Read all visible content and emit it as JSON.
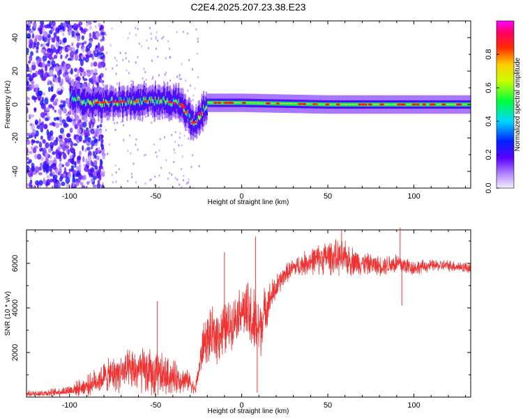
{
  "title": "C2E4.2025.207.23.38.E23",
  "chart_data": [
    {
      "type": "heatmap",
      "xlabel": "Height of straight line (km)",
      "ylabel": "Frequency (Hz)",
      "xlim": [
        -125,
        133
      ],
      "ylim": [
        -50,
        50
      ],
      "xticks": [
        -100,
        -50,
        0,
        50,
        100
      ],
      "yticks": [
        -40,
        -20,
        0,
        20,
        40
      ],
      "colorbar": {
        "label": "Normalized spectral amplitude",
        "range": [
          0.0,
          1.0
        ],
        "ticks": [
          0.0,
          0.2,
          0.4,
          0.6,
          0.8
        ]
      },
      "signal_ridge": {
        "frequency_hz": 0,
        "x_start": -100,
        "x_end": 133,
        "description_points": [
          {
            "x": -100,
            "f": 5
          },
          {
            "x": -90,
            "f": 1
          },
          {
            "x": -60,
            "f": 2
          },
          {
            "x": -45,
            "f": 2
          },
          {
            "x": -35,
            "f": 0
          },
          {
            "x": -28,
            "f": -12
          },
          {
            "x": -20,
            "f": 1
          },
          {
            "x": 0,
            "f": 1
          },
          {
            "x": 50,
            "f": 0
          },
          {
            "x": 133,
            "f": 0
          }
        ]
      },
      "noise_region": {
        "x_start": -125,
        "x_end": -90
      }
    },
    {
      "type": "line",
      "xlabel": "Height of straight line (km)",
      "ylabel": "SNR (10 * v/v)",
      "xlim": [
        -125,
        133
      ],
      "ylim": [
        0,
        7500
      ],
      "xticks": [
        -100,
        -50,
        0,
        50,
        100
      ],
      "yticks": [
        2000,
        4000,
        6000
      ],
      "color": "#ee3333",
      "envelope": [
        {
          "x": -125,
          "mean": 150,
          "amp": 150
        },
        {
          "x": -110,
          "mean": 200,
          "amp": 200
        },
        {
          "x": -100,
          "mean": 300,
          "amp": 300
        },
        {
          "x": -90,
          "mean": 500,
          "amp": 500
        },
        {
          "x": -80,
          "mean": 900,
          "amp": 800
        },
        {
          "x": -70,
          "mean": 1100,
          "amp": 1000
        },
        {
          "x": -60,
          "mean": 1200,
          "amp": 1200
        },
        {
          "x": -50,
          "mean": 1000,
          "amp": 1300
        },
        {
          "x": -40,
          "mean": 900,
          "amp": 900
        },
        {
          "x": -30,
          "mean": 700,
          "amp": 500
        },
        {
          "x": -27,
          "mean": 300,
          "amp": 250
        },
        {
          "x": -22,
          "mean": 2500,
          "amp": 1200
        },
        {
          "x": -15,
          "mean": 2800,
          "amp": 1500
        },
        {
          "x": -10,
          "mean": 3000,
          "amp": 1500
        },
        {
          "x": -5,
          "mean": 3400,
          "amp": 1200
        },
        {
          "x": 0,
          "mean": 4000,
          "amp": 1200
        },
        {
          "x": 5,
          "mean": 3500,
          "amp": 2000
        },
        {
          "x": 10,
          "mean": 3000,
          "amp": 1800
        },
        {
          "x": 15,
          "mean": 4200,
          "amp": 1000
        },
        {
          "x": 20,
          "mean": 4900,
          "amp": 700
        },
        {
          "x": 25,
          "mean": 5500,
          "amp": 500
        },
        {
          "x": 30,
          "mean": 5800,
          "amp": 500
        },
        {
          "x": 40,
          "mean": 6100,
          "amp": 700
        },
        {
          "x": 50,
          "mean": 6300,
          "amp": 900
        },
        {
          "x": 60,
          "mean": 6200,
          "amp": 900
        },
        {
          "x": 70,
          "mean": 6000,
          "amp": 600
        },
        {
          "x": 80,
          "mean": 5900,
          "amp": 500
        },
        {
          "x": 90,
          "mean": 6000,
          "amp": 600
        },
        {
          "x": 100,
          "mean": 5800,
          "amp": 400
        },
        {
          "x": 110,
          "mean": 5900,
          "amp": 300
        },
        {
          "x": 120,
          "mean": 5900,
          "amp": 300
        },
        {
          "x": 133,
          "mean": 5800,
          "amp": 300
        }
      ],
      "spikes": [
        {
          "x": -49,
          "y": 4300
        },
        {
          "x": -10,
          "y": 6500
        },
        {
          "x": 8,
          "y": 7200
        },
        {
          "x": 9,
          "y": 200
        },
        {
          "x": 58,
          "y": 7500
        },
        {
          "x": 92,
          "y": 7600
        },
        {
          "x": 93,
          "y": 4100
        }
      ]
    }
  ]
}
